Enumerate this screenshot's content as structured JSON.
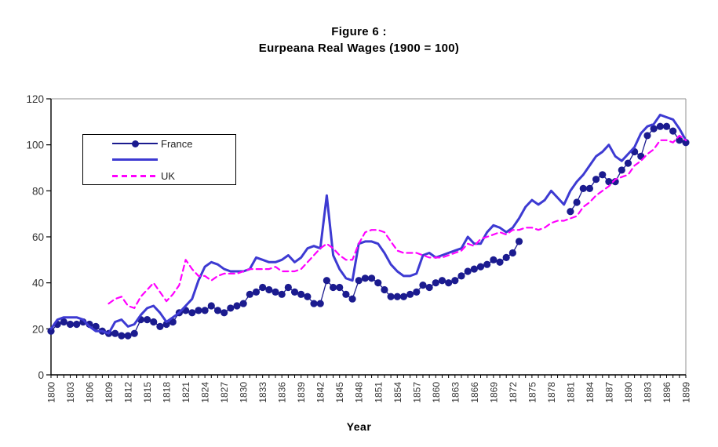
{
  "title": {
    "line1": "Figure 6 :",
    "line2": "Eurpeana Real Wages (1900 = 100)"
  },
  "xaxis_title": "Year",
  "legend": {
    "entries": [
      {
        "label": "France",
        "style": "line-with-marker",
        "color": "#1b1b8f"
      },
      {
        "label": "",
        "style": "solid-line",
        "color": "#3d3ad2"
      },
      {
        "label": "UK",
        "style": "dashed-line",
        "color": "#ff00ff"
      }
    ]
  },
  "colors": {
    "france": "#1b1b8f",
    "unnamed_series": "#3d3ad2",
    "uk": "#ff00ff",
    "axis": "#000000",
    "plot_border": "#909090",
    "tick_text": "#333333",
    "background": "#ffffff"
  },
  "chart_data": {
    "type": "line",
    "title": "Figure 6 :",
    "subtitle": "Eurpeana Real Wages (1900 = 100)",
    "xlabel": "Year",
    "ylabel": "",
    "xlim": [
      1800,
      1899
    ],
    "ylim": [
      0,
      120
    ],
    "ytick_interval": 20,
    "ytick_labels": [
      "0",
      "20",
      "40",
      "60",
      "80",
      "100",
      "120"
    ],
    "xtick_labels": [
      "1800",
      "1803",
      "1806",
      "1809",
      "1812",
      "1815",
      "1818",
      "1821",
      "1824",
      "1827",
      "1830",
      "1833",
      "1836",
      "1839",
      "1842",
      "1845",
      "1848",
      "1851",
      "1854",
      "1857",
      "1860",
      "1863",
      "1866",
      "1869",
      "1872",
      "1875",
      "1878",
      "1881",
      "1884",
      "1887",
      "1890",
      "1893",
      "1896",
      "1899"
    ],
    "x_start": 1800,
    "x_step": 1,
    "grid": false,
    "legend_position": "upper-left-inside",
    "series": [
      {
        "name": "France",
        "color": "#1b1b8f",
        "style": "solid-with-markers",
        "values": [
          19,
          22,
          23,
          22,
          22,
          23,
          22,
          21,
          19,
          18,
          18,
          17,
          17,
          18,
          24,
          24,
          23,
          21,
          22,
          23,
          27,
          28,
          27,
          28,
          28,
          30,
          28,
          27,
          29,
          30,
          31,
          35,
          36,
          38,
          37,
          36,
          35,
          38,
          36,
          35,
          34,
          31,
          31,
          41,
          38,
          38,
          35,
          33,
          41,
          42,
          42,
          40,
          37,
          34,
          34,
          34,
          35,
          36,
          39,
          38,
          40,
          41,
          40,
          41,
          43,
          45,
          46,
          47,
          48,
          50,
          49,
          51,
          53,
          58,
          null,
          null,
          null,
          null,
          null,
          null,
          null,
          71,
          75,
          81,
          81,
          85,
          87,
          84,
          84,
          89,
          92,
          97,
          95,
          104,
          107,
          108,
          108,
          106,
          102,
          101
        ]
      },
      {
        "name": "",
        "color": "#3d3ad2",
        "style": "solid",
        "values": [
          20,
          24,
          25,
          25,
          25,
          24,
          21,
          19,
          19,
          18,
          23,
          24,
          21,
          22,
          26,
          29,
          30,
          27,
          23,
          25,
          27,
          30,
          33,
          41,
          47,
          49,
          48,
          46,
          45,
          45,
          45,
          46,
          51,
          50,
          49,
          49,
          50,
          52,
          49,
          51,
          55,
          56,
          55,
          78,
          52,
          46,
          42,
          41,
          57,
          58,
          58,
          57,
          53,
          48,
          45,
          43,
          43,
          44,
          52,
          53,
          51,
          52,
          53,
          54,
          55,
          60,
          57,
          57,
          62,
          65,
          64,
          62,
          64,
          68,
          73,
          76,
          74,
          76,
          80,
          77,
          74,
          80,
          84,
          87,
          91,
          95,
          97,
          100,
          95,
          93,
          96,
          99,
          105,
          108,
          109,
          113,
          112,
          111,
          107,
          102
        ]
      },
      {
        "name": "UK",
        "color": "#ff00ff",
        "style": "dashed",
        "values": [
          null,
          null,
          null,
          null,
          null,
          null,
          null,
          null,
          null,
          31,
          33,
          34,
          30,
          29,
          34,
          37,
          40,
          36,
          32,
          35,
          39,
          50,
          46,
          43,
          43,
          41,
          43,
          44,
          44,
          44,
          45,
          46,
          46,
          46,
          46,
          47,
          45,
          45,
          45,
          46,
          49,
          52,
          55,
          57,
          55,
          52,
          50,
          50,
          57,
          62,
          63,
          63,
          62,
          58,
          54,
          53,
          53,
          53,
          52,
          51,
          51,
          51,
          52,
          53,
          54,
          57,
          56,
          59,
          60,
          61,
          62,
          61,
          63,
          63,
          64,
          64,
          63,
          64,
          66,
          67,
          67,
          68,
          69,
          73,
          75,
          78,
          80,
          82,
          85,
          86,
          87,
          91,
          93,
          96,
          98,
          102,
          102,
          101,
          104,
          102
        ]
      }
    ]
  }
}
